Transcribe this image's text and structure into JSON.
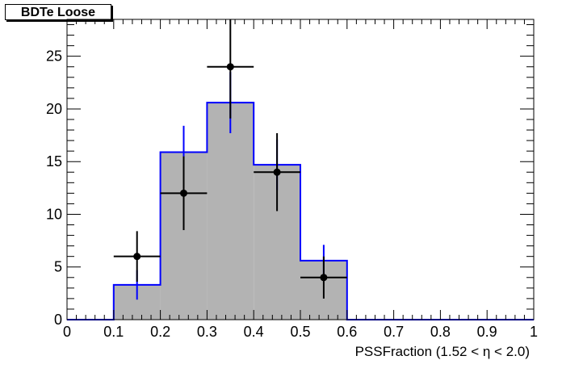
{
  "chart_data": {
    "type": "histogram",
    "title": "BDTe Loose",
    "xlabel": "PSSFraction (1.52 <  η < 2.0)",
    "ylabel": "",
    "xlim": [
      0,
      1
    ],
    "ylim": [
      0,
      28.5
    ],
    "x_ticks": [
      "0",
      "0.1",
      "0.2",
      "0.3",
      "0.4",
      "0.5",
      "0.6",
      "0.7",
      "0.8",
      "0.9",
      "1"
    ],
    "y_ticks": [
      "0",
      "5",
      "10",
      "15",
      "20",
      "25"
    ],
    "colors": {
      "histogram_line": "#0000ff",
      "histogram_fill": "#b3b3b3",
      "data_points": "#000000"
    },
    "series": [
      {
        "kind": "histogram",
        "bin_edges": [
          0.0,
          0.1,
          0.2,
          0.3,
          0.4,
          0.5,
          0.6,
          0.7,
          0.8,
          0.9,
          1.0
        ],
        "values": [
          0,
          3.3,
          15.9,
          20.6,
          14.7,
          5.6,
          0,
          0,
          0,
          0
        ],
        "errors": [
          0,
          1.4,
          2.5,
          2.9,
          2.4,
          1.5,
          0,
          0,
          0,
          0
        ]
      },
      {
        "kind": "points",
        "x": [
          0.15,
          0.25,
          0.35,
          0.45,
          0.55
        ],
        "y": [
          6,
          12,
          24,
          14,
          4
        ],
        "x_err": [
          0.05,
          0.05,
          0.05,
          0.05,
          0.05
        ],
        "y_err_low": [
          2.4,
          3.5,
          4.9,
          3.7,
          2.0
        ],
        "y_err_high": [
          2.4,
          3.5,
          4.9,
          3.7,
          2.0
        ]
      }
    ]
  }
}
